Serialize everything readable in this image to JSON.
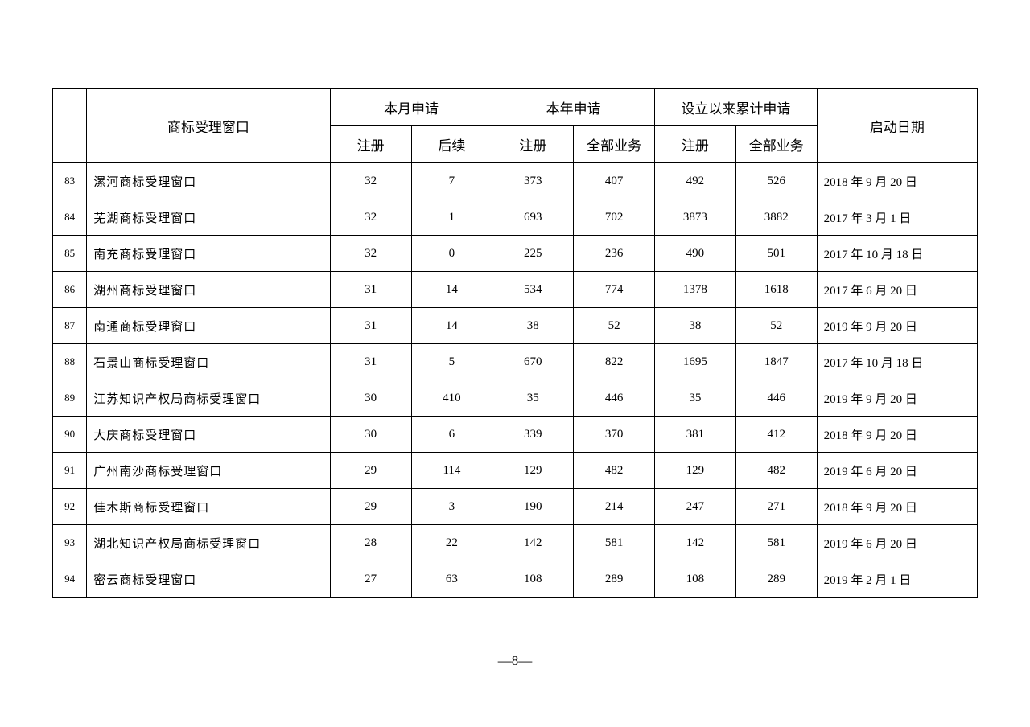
{
  "header": {
    "window": "商标受理窗口",
    "month": "本月申请",
    "year": "本年申请",
    "cumulative": "设立以来累计申请",
    "startdate": "启动日期",
    "reg": "注册",
    "followup": "后续",
    "allbiz": "全部业务"
  },
  "rows": [
    {
      "idx": "83",
      "name": "漯河商标受理窗口",
      "m_reg": "32",
      "m_fu": "7",
      "y_reg": "373",
      "y_all": "407",
      "c_reg": "492",
      "c_all": "526",
      "date": "2018 年 9 月 20 日"
    },
    {
      "idx": "84",
      "name": "芜湖商标受理窗口",
      "m_reg": "32",
      "m_fu": "1",
      "y_reg": "693",
      "y_all": "702",
      "c_reg": "3873",
      "c_all": "3882",
      "date": "2017 年 3 月 1 日"
    },
    {
      "idx": "85",
      "name": "南充商标受理窗口",
      "m_reg": "32",
      "m_fu": "0",
      "y_reg": "225",
      "y_all": "236",
      "c_reg": "490",
      "c_all": "501",
      "date": "2017 年 10 月 18 日"
    },
    {
      "idx": "86",
      "name": "湖州商标受理窗口",
      "m_reg": "31",
      "m_fu": "14",
      "y_reg": "534",
      "y_all": "774",
      "c_reg": "1378",
      "c_all": "1618",
      "date": "2017 年 6 月 20 日"
    },
    {
      "idx": "87",
      "name": "南通商标受理窗口",
      "m_reg": "31",
      "m_fu": "14",
      "y_reg": "38",
      "y_all": "52",
      "c_reg": "38",
      "c_all": "52",
      "date": "2019 年 9 月 20 日"
    },
    {
      "idx": "88",
      "name": "石景山商标受理窗口",
      "m_reg": "31",
      "m_fu": "5",
      "y_reg": "670",
      "y_all": "822",
      "c_reg": "1695",
      "c_all": "1847",
      "date": "2017 年 10 月 18 日"
    },
    {
      "idx": "89",
      "name": "江苏知识产权局商标受理窗口",
      "m_reg": "30",
      "m_fu": "410",
      "y_reg": "35",
      "y_all": "446",
      "c_reg": "35",
      "c_all": "446",
      "date": "2019 年 9 月 20 日"
    },
    {
      "idx": "90",
      "name": "大庆商标受理窗口",
      "m_reg": "30",
      "m_fu": "6",
      "y_reg": "339",
      "y_all": "370",
      "c_reg": "381",
      "c_all": "412",
      "date": "2018 年 9 月 20 日"
    },
    {
      "idx": "91",
      "name": "广州南沙商标受理窗口",
      "m_reg": "29",
      "m_fu": "114",
      "y_reg": "129",
      "y_all": "482",
      "c_reg": "129",
      "c_all": "482",
      "date": "2019 年 6 月 20 日"
    },
    {
      "idx": "92",
      "name": "佳木斯商标受理窗口",
      "m_reg": "29",
      "m_fu": "3",
      "y_reg": "190",
      "y_all": "214",
      "c_reg": "247",
      "c_all": "271",
      "date": "2018 年 9 月 20 日"
    },
    {
      "idx": "93",
      "name": "湖北知识产权局商标受理窗口",
      "m_reg": "28",
      "m_fu": "22",
      "y_reg": "142",
      "y_all": "581",
      "c_reg": "142",
      "c_all": "581",
      "date": "2019 年 6 月 20 日"
    },
    {
      "idx": "94",
      "name": "密云商标受理窗口",
      "m_reg": "27",
      "m_fu": "63",
      "y_reg": "108",
      "y_all": "289",
      "c_reg": "108",
      "c_all": "289",
      "date": "2019 年 2 月 1 日"
    }
  ],
  "pagenum": "—8—"
}
